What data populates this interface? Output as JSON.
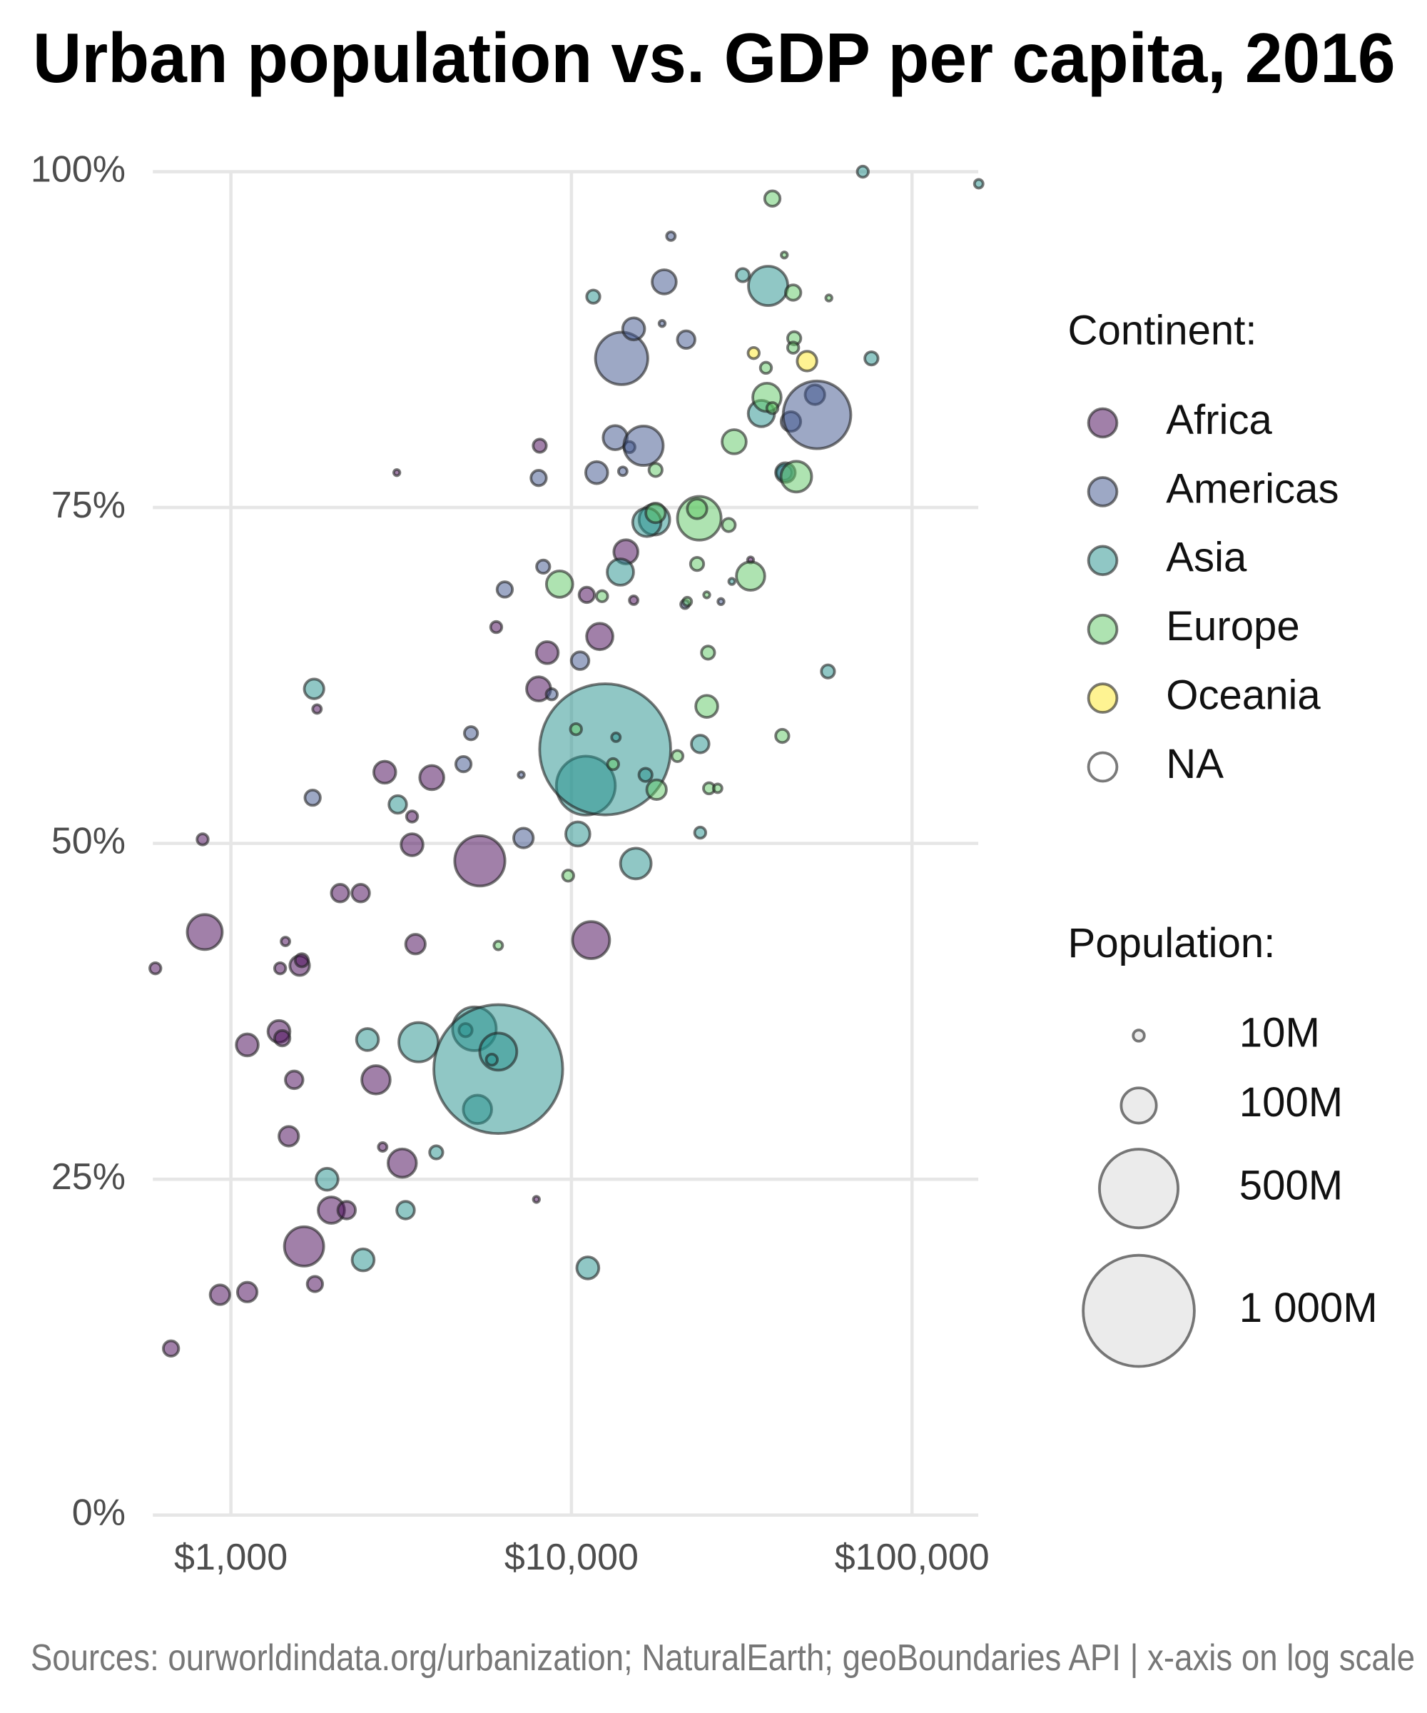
{
  "chart_data": {
    "type": "bubble",
    "title": "Urban population vs. GDP per capita, 2016",
    "caption": "Sources: ourworldindata.org/urbanization; NaturalEarth; geoBoundaries API | x-axis on log scale",
    "x_scale": "log",
    "grid": true,
    "xlim": [
      590,
      160000
    ],
    "ylim": [
      0,
      100
    ],
    "xticks": [
      {
        "value": 1000,
        "label": "$1,000"
      },
      {
        "value": 10000,
        "label": "$10,000"
      },
      {
        "value": 100000,
        "label": "$100,000"
      }
    ],
    "yticks": [
      {
        "value": 0,
        "label": "0%"
      },
      {
        "value": 25,
        "label": "25%"
      },
      {
        "value": 50,
        "label": "50%"
      },
      {
        "value": 75,
        "label": "75%"
      },
      {
        "value": 100,
        "label": "100%"
      }
    ],
    "legend_title": "Continent:",
    "legend_position": "right",
    "size_legend": {
      "title": "Population:",
      "values": [
        {
          "value": 10,
          "label": "10M"
        },
        {
          "value": 100,
          "label": "100M"
        },
        {
          "value": 500,
          "label": "500M"
        },
        {
          "value": 1000,
          "label": "1 000M"
        }
      ]
    },
    "series": [
      {
        "name": "Africa",
        "color": "#440154",
        "x": [
          600,
          667,
          826,
          838,
          929,
          1117,
          1117,
          1384,
          1415,
          1395,
          1446,
          1534,
          1479,
          1592,
          1615,
          1640,
          1765,
          1790,
          1972,
          2187,
          2093,
          2405,
          2667,
          2790,
          2830,
          3185,
          3404,
          3404,
          3483,
          3890,
          3070,
          5382,
          6012,
          7890,
          8070,
          8010,
          8490,
          11090,
          12110,
          11420,
          14450,
          15230,
          33570
        ],
        "values": [
          40.7,
          12.4,
          50.3,
          43.4,
          16.4,
          16.6,
          35.0,
          36.0,
          35.5,
          40.7,
          42.7,
          32.4,
          28.2,
          40.9,
          41.3,
          20.0,
          17.2,
          60.0,
          22.7,
          22.7,
          46.3,
          46.3,
          32.4,
          27.4,
          55.3,
          26.2,
          49.9,
          52.0,
          42.5,
          54.9,
          77.6,
          48.7,
          66.1,
          23.5,
          79.6,
          61.5,
          64.2,
          68.5,
          65.4,
          42.8,
          71.7,
          68.1,
          71.1
        ],
        "sizes": [
          10,
          19,
          10,
          99,
          31,
          31,
          39,
          39,
          19,
          10,
          6,
          25,
          31,
          31,
          14,
          125,
          19,
          6,
          56,
          25,
          25,
          25,
          65,
          6,
          39,
          65,
          39,
          10,
          31,
          47,
          3,
          204,
          10,
          3,
          14,
          47,
          39,
          19,
          56,
          111,
          47,
          6,
          3
        ]
      },
      {
        "name": "Americas",
        "color": "#3b528b",
        "x": [
          1738,
          5070,
          4818,
          6370,
          7120,
          7230,
          8260,
          8010,
          8750,
          10600,
          11860,
          13440,
          14040,
          14150,
          14800,
          15230,
          16280,
          18460,
          18720,
          19590,
          21550,
          21720,
          44090,
          51870,
          52600,
          42170,
          27480
        ],
        "values": [
          53.4,
          58.2,
          55.9,
          68.9,
          55.1,
          50.4,
          70.6,
          77.2,
          61.1,
          63.6,
          77.6,
          80.2,
          86.1,
          77.7,
          79.5,
          88.3,
          79.6,
          88.7,
          91.8,
          95.2,
          67.8,
          87.5,
          81.4,
          83.4,
          81.9,
          77.6,
          68.0
        ],
        "sizes": [
          19,
          14,
          19,
          19,
          3,
          31,
          14,
          19,
          10,
          25,
          39,
          47,
          222,
          6,
          10,
          39,
          125,
          3,
          47,
          6,
          6,
          25,
          31,
          31,
          370,
          19,
          3
        ]
      },
      {
        "name": "Asia",
        "color": "#21908c",
        "x": [
          1755,
          1916,
          2445,
          2518,
          3090,
          3258,
          3556,
          4008,
          5188,
          4887,
          5297,
          6097,
          6097,
          5836,
          10440,
          11170,
          11020,
          12560,
          13510,
          13920,
          15450,
          16500,
          17520,
          16650,
          11590,
          23880,
          23880,
          29580,
          31840,
          36120,
          37800,
          42490,
          76000,
          71700,
          157000,
          56640
        ],
        "values": [
          61.5,
          25.0,
          19.0,
          35.4,
          52.9,
          22.7,
          35.2,
          27.0,
          36.2,
          36.1,
          30.2,
          33.2,
          34.5,
          33.9,
          50.7,
          18.4,
          54.3,
          57.0,
          57.9,
          70.2,
          48.5,
          55.1,
          74.1,
          73.9,
          90.7,
          57.4,
          50.8,
          69.5,
          92.3,
          82.0,
          91.5,
          77.6,
          86.1,
          100,
          99.1,
          62.8
        ],
        "sizes": [
          31,
          39,
          39,
          39,
          25,
          25,
          125,
          14,
          154,
          14,
          65,
          1343,
          111,
          10,
          47,
          39,
          281,
          1389,
          6,
          56,
          76,
          14,
          76,
          65,
          14,
          25,
          10,
          3,
          14,
          56,
          125,
          31,
          14,
          10,
          6,
          14
        ]
      },
      {
        "name": "Europe",
        "color": "#5dc863",
        "x": [
          6097,
          9230,
          9780,
          10310,
          12300,
          13250,
          17780,
          17660,
          17660,
          20470,
          21880,
          23380,
          23730,
          23380,
          24960,
          24960,
          25180,
          25350,
          26870,
          28950,
          30040,
          33570,
          37240,
          37500,
          38900,
          38900,
          41590,
          44770,
          45090,
          44770,
          45730,
          57000,
          42170
        ],
        "values": [
          42.4,
          69.3,
          47.6,
          58.5,
          68.4,
          55.9,
          54.0,
          77.8,
          74.6,
          56.5,
          68.0,
          70.8,
          74.2,
          74.9,
          68.5,
          60.2,
          64.2,
          54.1,
          54.1,
          73.7,
          79.9,
          69.9,
          85.4,
          83.2,
          82.4,
          98.0,
          58.0,
          91.0,
          87.6,
          86.9,
          77.3,
          90.6,
          93.8
        ],
        "sizes": [
          6,
          56,
          10,
          10,
          10,
          10,
          31,
          14,
          31,
          10,
          6,
          14,
          154,
          31,
          3,
          39,
          14,
          10,
          6,
          14,
          47,
          65,
          10,
          65,
          10,
          19,
          14,
          19,
          14,
          10,
          76,
          3,
          3
        ]
      },
      {
        "name": "Oceania",
        "color": "#fde725",
        "x": [
          34280,
          49170
        ],
        "values": [
          86.5,
          85.9
        ],
        "sizes": [
          10,
          31
        ]
      },
      {
        "name": "NA",
        "color": "none",
        "x": [],
        "values": [],
        "sizes": []
      }
    ]
  }
}
